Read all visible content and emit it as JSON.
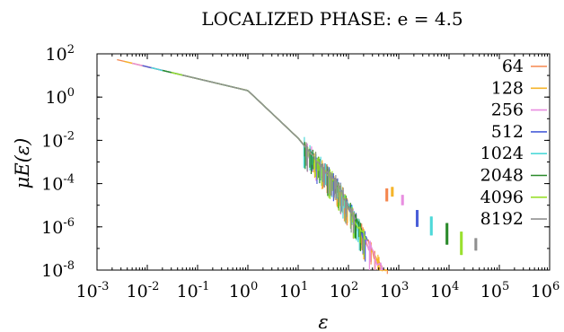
{
  "chart_data": {
    "type": "scatter",
    "title": "LOCALIZED PHASE: e = 4.5",
    "xlabel": "ε",
    "ylabel": "μE(ε)",
    "xscale": "log",
    "yscale": "log",
    "xlim": [
      0.001,
      1000000
    ],
    "ylim": [
      1e-08,
      100
    ],
    "x_ticks": [
      {
        "base": "10",
        "exp": "-3"
      },
      {
        "base": "10",
        "exp": "-2"
      },
      {
        "base": "10",
        "exp": "-1"
      },
      {
        "base": "10",
        "exp": "0"
      },
      {
        "base": "10",
        "exp": "1"
      },
      {
        "base": "10",
        "exp": "2"
      },
      {
        "base": "10",
        "exp": "3"
      },
      {
        "base": "10",
        "exp": "4"
      },
      {
        "base": "10",
        "exp": "5"
      },
      {
        "base": "10",
        "exp": "6"
      }
    ],
    "y_ticks": [
      {
        "base": "10",
        "exp": "2"
      },
      {
        "base": "10",
        "exp": "0"
      },
      {
        "base": "10",
        "exp": "-2"
      },
      {
        "base": "10",
        "exp": "-4"
      },
      {
        "base": "10",
        "exp": "-6"
      },
      {
        "base": "10",
        "exp": "-8"
      }
    ],
    "legend_position": "top-right",
    "series": [
      {
        "name": "64",
        "color": "#f5874f",
        "start_x": 0.0025,
        "end_x": 600,
        "outlier_x": 560,
        "outlier_y": [
          1.5e-05,
          6e-05
        ]
      },
      {
        "name": "128",
        "color": "#f5b42a",
        "start_x": 0.0035,
        "end_x": 600,
        "outlier_x": 720,
        "outlier_y": [
          2.5e-05,
          7e-05
        ]
      },
      {
        "name": "256",
        "color": "#e88ee0",
        "start_x": 0.005,
        "end_x": 480,
        "outlier_x": 1150,
        "outlier_y": [
          1e-05,
          3e-05
        ]
      },
      {
        "name": "512",
        "color": "#4a5ed8",
        "start_x": 0.008,
        "end_x": 240,
        "outlier_x": 2250,
        "outlier_y": [
          1e-06,
          6e-06
        ]
      },
      {
        "name": "1024",
        "color": "#4ed9d9",
        "start_x": 0.012,
        "end_x": 170,
        "outlier_x": 4300,
        "outlier_y": [
          4e-07,
          3e-06
        ]
      },
      {
        "name": "2048",
        "color": "#2a8a2a",
        "start_x": 0.02,
        "end_x": 190,
        "outlier_x": 8800,
        "outlier_y": [
          1.5e-07,
          1.5e-06
        ]
      },
      {
        "name": "4096",
        "color": "#9ae02e",
        "start_x": 0.03,
        "end_x": 230,
        "outlier_x": 17000,
        "outlier_y": [
          5e-08,
          6e-07
        ]
      },
      {
        "name": "8192",
        "color": "#909090",
        "start_x": 0.05,
        "end_x": 140,
        "outlier_x": 33000,
        "outlier_y": [
          8e-08,
          3e-07
        ]
      }
    ]
  }
}
